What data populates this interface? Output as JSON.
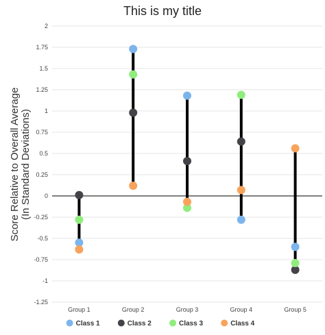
{
  "chart_data": {
    "type": "scatter",
    "title": "This is my title",
    "xlabel": "",
    "ylabel": [
      "Score Relative to Overall Average",
      "(In Standard Deviations)"
    ],
    "categories": [
      "Group 1",
      "Group 2",
      "Group 3",
      "Group 4",
      "Group 5"
    ],
    "ylim": [
      -1.25,
      2
    ],
    "yticks": [
      2,
      1.75,
      1.5,
      1.25,
      1,
      0.75,
      0.5,
      0.25,
      0,
      -0.25,
      -0.5,
      -0.75,
      -1,
      -1.25
    ],
    "ytick_labels": [
      "2",
      "1.75",
      "1.5",
      "1.25",
      "1",
      "0.75",
      "0.5",
      "0.25",
      "0",
      "-0.25",
      "-0.5",
      "-0.75",
      "-1",
      "-1.25"
    ],
    "grid": true,
    "zero_line": true,
    "legend_position": "bottom",
    "series": [
      {
        "name": "Class 1",
        "color": "#7cb5ec",
        "values": [
          -0.55,
          1.73,
          1.18,
          -0.28,
          -0.6
        ]
      },
      {
        "name": "Class 2",
        "color": "#434348",
        "values": [
          0.01,
          0.98,
          0.41,
          0.64,
          -0.87
        ]
      },
      {
        "name": "Class 3",
        "color": "#90ed7d",
        "values": [
          -0.28,
          1.43,
          -0.14,
          1.19,
          -0.79
        ]
      },
      {
        "name": "Class 4",
        "color": "#f7a35c",
        "values": [
          -0.63,
          0.12,
          -0.07,
          0.07,
          0.56
        ]
      }
    ]
  }
}
